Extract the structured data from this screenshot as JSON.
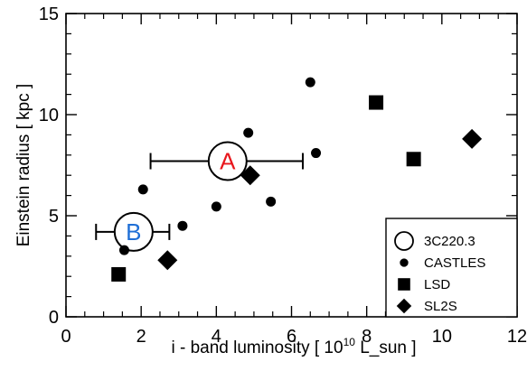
{
  "chart_data": {
    "type": "scatter",
    "xlabel": "i - band luminosity  [ 10",
    "xlabel_sup": "10",
    "xlabel_tail": " L_sun ]",
    "ylabel": "Einstein radius  [ kpc ]",
    "xlim": [
      0,
      12
    ],
    "ylim": [
      0,
      15
    ],
    "xticks": [
      0,
      2,
      4,
      6,
      8,
      10,
      12
    ],
    "yticks": [
      0,
      5,
      10,
      15
    ],
    "legend_position": "bottom-right",
    "series": [
      {
        "name": "3C220.3",
        "marker": "open-circle",
        "points": [
          {
            "label": "A",
            "label_color": "#e8161c",
            "x": 4.3,
            "y": 7.7,
            "xerr_low": 2.25,
            "xerr_high": 6.3
          },
          {
            "label": "B",
            "label_color": "#1f6fd6",
            "x": 1.8,
            "y": 4.2,
            "xerr_low": 0.8,
            "xerr_high": 2.75
          }
        ]
      },
      {
        "name": "CASTLES",
        "marker": "filled-circle",
        "points": [
          {
            "x": 1.55,
            "y": 3.3
          },
          {
            "x": 2.05,
            "y": 6.3
          },
          {
            "x": 3.1,
            "y": 4.5
          },
          {
            "x": 4.0,
            "y": 5.45
          },
          {
            "x": 4.85,
            "y": 9.1
          },
          {
            "x": 5.45,
            "y": 5.7
          },
          {
            "x": 6.5,
            "y": 11.6
          },
          {
            "x": 6.65,
            "y": 8.1
          }
        ]
      },
      {
        "name": "LSD",
        "marker": "filled-square",
        "points": [
          {
            "x": 1.4,
            "y": 2.1
          },
          {
            "x": 8.25,
            "y": 10.6
          },
          {
            "x": 9.25,
            "y": 7.8
          }
        ]
      },
      {
        "name": "SL2S",
        "marker": "filled-diamond",
        "points": [
          {
            "x": 2.7,
            "y": 2.8
          },
          {
            "x": 4.9,
            "y": 7.0
          },
          {
            "x": 10.8,
            "y": 8.8
          }
        ]
      }
    ]
  }
}
